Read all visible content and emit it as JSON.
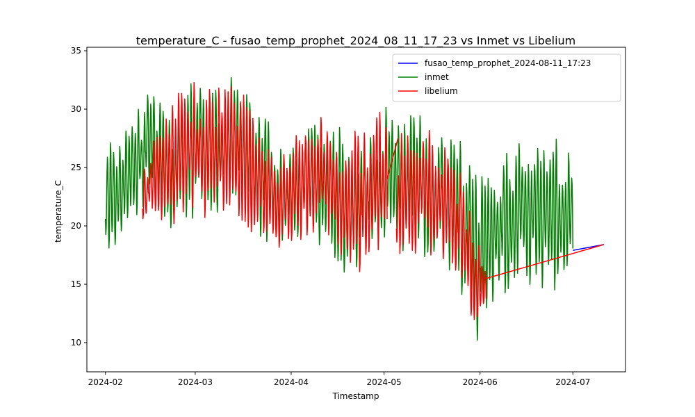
{
  "chart_data": {
    "type": "line",
    "title": "temperature_C - fusao_temp_prophet_2024_08_11_17_23 vs Inmet vs Libelium",
    "xlabel": "Timestamp",
    "ylabel": "temperature_C",
    "xlim": [
      "2024-01-26",
      "2024-07-18"
    ],
    "ylim": [
      7.5,
      35.3
    ],
    "x_ticks": [
      "2024-02",
      "2024-03",
      "2024-04",
      "2024-05",
      "2024-06",
      "2024-07"
    ],
    "y_ticks": [
      10,
      15,
      20,
      25,
      30,
      35
    ],
    "grid": false,
    "legend_position": "top-right",
    "series": [
      {
        "name": "fusao_temp_prophet_2024-08-11_17:23",
        "color": "#0000ff",
        "points": [
          [
            "2024-07-01T00:00",
            17.9
          ],
          [
            "2024-07-11T00:00",
            18.4
          ]
        ]
      },
      {
        "name": "inmet",
        "color": "#008000",
        "segments": [
          {
            "start": "2024-02-01T00:00",
            "end": "2024-07-01T00:00",
            "period_days": 1,
            "profile": [
              [
                "2024-02-01",
                17.4,
                28.0
              ],
              [
                "2024-02-08",
                19.0,
                28.5
              ],
              [
                "2024-02-15",
                22.0,
                32.5
              ],
              [
                "2024-02-22",
                19.5,
                30.0
              ],
              [
                "2024-03-01",
                20.5,
                33.5
              ],
              [
                "2024-03-08",
                20.0,
                32.0
              ],
              [
                "2024-03-15",
                22.0,
                33.5
              ],
              [
                "2024-03-22",
                18.5,
                31.0
              ],
              [
                "2024-03-29",
                18.5,
                26.0
              ],
              [
                "2024-04-05",
                19.0,
                28.0
              ],
              [
                "2024-04-12",
                18.0,
                30.5
              ],
              [
                "2024-04-19",
                15.5,
                27.5
              ],
              [
                "2024-04-26",
                16.5,
                29.5
              ],
              [
                "2024-05-03",
                17.0,
                31.0
              ],
              [
                "2024-05-10",
                18.0,
                30.0
              ],
              [
                "2024-05-17",
                16.5,
                28.5
              ],
              [
                "2024-05-24",
                15.5,
                28.0
              ],
              [
                "2024-05-31",
                9.5,
                24.0
              ],
              [
                "2024-06-07",
                13.5,
                27.0
              ],
              [
                "2024-06-14",
                14.5,
                28.0
              ],
              [
                "2024-06-21",
                14.0,
                28.5
              ],
              [
                "2024-06-28",
                14.0,
                28.0
              ],
              [
                "2024-07-01",
                16.0,
                24.0
              ]
            ]
          }
        ]
      },
      {
        "name": "libelium",
        "color": "#ff0000",
        "segments": [
          {
            "start": "2024-02-13T00:00",
            "end": "2024-05-02T00:00",
            "period_days": 1,
            "profile": [
              [
                "2024-02-13",
                20.5,
                25.5
              ],
              [
                "2024-02-20",
                19.5,
                30.0
              ],
              [
                "2024-02-27",
                21.0,
                32.5
              ],
              [
                "2024-03-05",
                20.5,
                32.0
              ],
              [
                "2024-03-12",
                21.5,
                33.0
              ],
              [
                "2024-03-19",
                19.0,
                31.0
              ],
              [
                "2024-03-26",
                17.5,
                26.0
              ],
              [
                "2024-04-02",
                18.5,
                28.0
              ],
              [
                "2024-04-09",
                19.5,
                30.0
              ],
              [
                "2024-04-16",
                17.0,
                27.5
              ],
              [
                "2024-04-23",
                16.0,
                29.0
              ],
              [
                "2024-04-30",
                17.5,
                30.0
              ],
              [
                "2024-05-02",
                19.0,
                27.0
              ]
            ]
          },
          {
            "start": "2024-05-05T00:00",
            "end": "2024-06-03T00:00",
            "period_days": 1,
            "profile": [
              [
                "2024-05-05",
                17.5,
                28.0
              ],
              [
                "2024-05-12",
                17.5,
                28.5
              ],
              [
                "2024-05-19",
                16.5,
                28.0
              ],
              [
                "2024-05-26",
                14.5,
                24.0
              ],
              [
                "2024-05-30",
                10.0,
                20.0
              ],
              [
                "2024-06-03",
                12.0,
                17.0
              ]
            ]
          }
        ],
        "links": [
          [
            [
              "2024-05-02T00:00",
              24.0
            ],
            [
              "2024-05-05T12:00",
              27.5
            ]
          ],
          [
            [
              "2024-06-03T00:00",
              15.5
            ],
            [
              "2024-07-11T00:00",
              18.4
            ]
          ]
        ]
      }
    ]
  }
}
